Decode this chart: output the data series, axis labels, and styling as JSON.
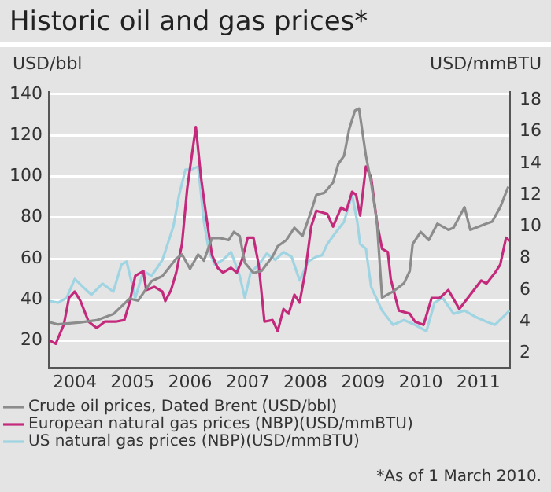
{
  "chart_data": {
    "type": "line",
    "title": "Historic oil and gas prices*",
    "ylabel": "USD/bbl",
    "y2label": "USD/mmBTU",
    "annotations": [
      "*As of 1 March 2010."
    ],
    "xlim": [
      2003.55,
      2011.55
    ],
    "xticks": [
      2004,
      2005,
      2006,
      2007,
      2008,
      2009,
      2010,
      2011
    ],
    "ylim": [
      7,
      141
    ],
    "yticks": [
      20,
      40,
      60,
      80,
      100,
      120,
      140
    ],
    "y2lim": [
      1.1,
      18.5
    ],
    "y2ticks": [
      2,
      4,
      6,
      8,
      10,
      12,
      14,
      16,
      18
    ],
    "grid": "y",
    "legend": "bottom",
    "marker": "none",
    "line_style": "solid",
    "series": [
      {
        "name": "Crude oil prices, Dated Brent (USD/bbl)",
        "color": "#8c8c8c",
        "x": [
          2003.57,
          2003.71,
          2004.1,
          2004.38,
          2004.67,
          2004.95,
          2005.1,
          2005.33,
          2005.52,
          2005.76,
          2005.86,
          2006.0,
          2006.14,
          2006.24,
          2006.38,
          2006.52,
          2006.67,
          2006.76,
          2006.86,
          2006.95,
          2007.1,
          2007.24,
          2007.43,
          2007.52,
          2007.67,
          2007.81,
          2007.95,
          2008.1,
          2008.19,
          2008.33,
          2008.48,
          2008.57,
          2008.67,
          2008.76,
          2008.86,
          2008.93,
          2009.05,
          2009.14,
          2009.24,
          2009.33,
          2009.52,
          2009.71,
          2009.81,
          2009.86,
          2010.0,
          2010.14,
          2010.29,
          2010.48,
          2010.57,
          2010.76,
          2010.86,
          2011.14,
          2011.24,
          2011.38,
          2011.52
        ],
        "values": [
          29,
          28,
          29,
          30,
          33,
          40.5,
          39.6,
          49,
          51.5,
          60,
          62,
          55,
          62,
          59,
          70,
          70,
          69,
          73,
          71,
          58,
          53,
          54,
          61,
          66,
          69,
          75,
          71,
          83,
          91,
          92,
          97,
          106,
          110,
          123,
          132,
          133,
          110,
          97,
          78,
          41,
          44,
          48,
          54,
          67,
          73,
          69,
          77,
          74,
          75,
          85,
          74,
          77,
          78,
          85,
          95
        ]
      },
      {
        "name": "European natural gas prices (NBP)(USD/mmBTU)",
        "color": "#c42a7c",
        "axis": "y2",
        "x": [
          2003.57,
          2003.67,
          2003.81,
          2003.9,
          2004.0,
          2004.1,
          2004.24,
          2004.38,
          2004.52,
          2004.71,
          2004.86,
          2004.95,
          2005.05,
          2005.19,
          2005.24,
          2005.38,
          2005.52,
          2005.57,
          2005.67,
          2005.76,
          2005.86,
          2005.95,
          2006.1,
          2006.19,
          2006.29,
          2006.38,
          2006.48,
          2006.57,
          2006.71,
          2006.81,
          2006.9,
          2007.0,
          2007.1,
          2007.19,
          2007.29,
          2007.43,
          2007.52,
          2007.62,
          2007.71,
          2007.81,
          2007.9,
          2008.0,
          2008.1,
          2008.19,
          2008.38,
          2008.48,
          2008.62,
          2008.71,
          2008.81,
          2008.88,
          2008.95,
          2009.05,
          2009.14,
          2009.24,
          2009.33,
          2009.43,
          2009.48,
          2009.62,
          2009.81,
          2009.9,
          2010.05,
          2010.19,
          2010.33,
          2010.48,
          2010.67,
          2010.86,
          2011.05,
          2011.14,
          2011.29,
          2011.38,
          2011.48,
          2011.54
        ],
        "values": [
          2.8,
          2.6,
          3.8,
          5.5,
          5.9,
          5.3,
          4.0,
          3.6,
          4.0,
          4.0,
          4.1,
          5.2,
          6.9,
          7.2,
          6.0,
          6.2,
          5.9,
          5.3,
          6.0,
          7.1,
          8.9,
          12.4,
          16.3,
          13.1,
          10.4,
          8.2,
          7.4,
          7.1,
          7.4,
          7.1,
          7.9,
          9.3,
          9.3,
          7.6,
          4.0,
          4.1,
          3.4,
          4.8,
          4.5,
          5.7,
          5.2,
          7.2,
          10,
          11,
          10.8,
          10,
          11.2,
          11,
          12.2,
          12,
          10.7,
          13.8,
          13.1,
          10.3,
          8.6,
          8.4,
          6.7,
          4.7,
          4.5,
          4.0,
          3.8,
          5.5,
          5.5,
          6.0,
          4.8,
          5.7,
          6.6,
          6.4,
          7.1,
          7.6,
          9.3,
          9.1
        ]
      },
      {
        "name": "US natural gas prices (NBP)(USD/mmBTU)",
        "color": "#9fd4e2",
        "axis": "y2",
        "x": [
          2003.57,
          2003.71,
          2003.86,
          2004.0,
          2004.14,
          2004.29,
          2004.48,
          2004.67,
          2004.81,
          2004.9,
          2005.05,
          2005.19,
          2005.33,
          2005.43,
          2005.52,
          2005.71,
          2005.81,
          2005.92,
          2006.02,
          2006.14,
          2006.24,
          2006.33,
          2006.43,
          2006.57,
          2006.71,
          2006.86,
          2006.95,
          2007.05,
          2007.19,
          2007.33,
          2007.48,
          2007.62,
          2007.76,
          2007.9,
          2008.05,
          2008.19,
          2008.29,
          2008.38,
          2008.52,
          2008.67,
          2008.81,
          2008.9,
          2008.95,
          2009.05,
          2009.14,
          2009.33,
          2009.52,
          2009.71,
          2009.9,
          2010.1,
          2010.24,
          2010.38,
          2010.57,
          2010.76,
          2010.95,
          2011.14,
          2011.29,
          2011.43,
          2011.54
        ],
        "values": [
          5.3,
          5.2,
          5.5,
          6.7,
          6.2,
          5.7,
          6.4,
          5.9,
          7.6,
          7.8,
          5.5,
          7.2,
          6.9,
          7.4,
          7.9,
          10,
          12,
          13.6,
          13.6,
          13.8,
          10.3,
          8.4,
          7.6,
          7.9,
          8.4,
          6.9,
          5.5,
          7.1,
          7.6,
          8.3,
          7.9,
          8.4,
          8.1,
          6.6,
          7.8,
          8.1,
          8.2,
          8.9,
          9.6,
          10.3,
          12,
          10.3,
          8.9,
          8.6,
          6.2,
          4.7,
          3.8,
          4.1,
          3.8,
          3.4,
          5.2,
          5.5,
          4.5,
          4.7,
          4.3,
          4.0,
          3.8,
          4.3,
          4.7
        ]
      }
    ]
  }
}
